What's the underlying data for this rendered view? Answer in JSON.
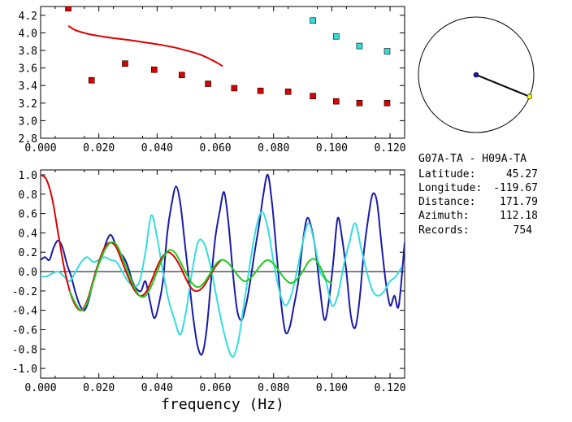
{
  "info": {
    "title": "G07A-TA - H09A-TA",
    "latitude_label": "Latitude:",
    "latitude": "45.27",
    "longitude_label": "Longitude:",
    "longitude": "-119.67",
    "distance_label": "Distance:",
    "distance": "171.79",
    "azimuth_label": "Azimuth:",
    "azimuth": "112.18",
    "records_label": "Records:",
    "records": "754"
  },
  "compass": {
    "azimuth_deg": 112.18,
    "needle_color": "#000000",
    "tip_color": "#ffff00"
  },
  "colors": {
    "red": "#dd0000",
    "cyan": "#33dddd",
    "blue": "#1a1aaa",
    "green": "#22cc22"
  },
  "chart_data": [
    {
      "type": "scatter",
      "xlim": [
        0.0,
        0.125
      ],
      "ylim": [
        2.8,
        4.3
      ],
      "xticks": [
        "0.000",
        "0.020",
        "0.040",
        "0.060",
        "0.080",
        "0.100",
        "0.120"
      ],
      "yticks": [
        "2.8",
        "3.0",
        "3.2",
        "3.4",
        "3.6",
        "3.8",
        "4.0",
        "4.2"
      ],
      "series": [
        {
          "marker": "square",
          "color": "#dd0000",
          "points": [
            [
              0.0095,
              4.28
            ],
            [
              0.0175,
              3.46
            ],
            [
              0.029,
              3.65
            ],
            [
              0.039,
              3.58
            ],
            [
              0.0485,
              3.52
            ],
            [
              0.0575,
              3.42
            ],
            [
              0.0665,
              3.37
            ],
            [
              0.0755,
              3.34
            ],
            [
              0.085,
              3.33
            ],
            [
              0.0935,
              3.28
            ],
            [
              0.1015,
              3.22
            ],
            [
              0.1095,
              3.2
            ],
            [
              0.119,
              3.2
            ]
          ]
        },
        {
          "marker": "square",
          "color": "#33dddd",
          "points": [
            [
              0.0935,
              4.14
            ],
            [
              0.1015,
              3.96
            ],
            [
              0.1095,
              3.85
            ],
            [
              0.119,
              3.79
            ]
          ]
        },
        {
          "marker": "line",
          "color": "#dd0000",
          "points": [
            [
              0.0095,
              4.08
            ],
            [
              0.012,
              4.03
            ],
            [
              0.016,
              3.99
            ],
            [
              0.02,
              3.965
            ],
            [
              0.025,
              3.94
            ],
            [
              0.03,
              3.92
            ],
            [
              0.035,
              3.895
            ],
            [
              0.04,
              3.87
            ],
            [
              0.045,
              3.84
            ],
            [
              0.05,
              3.8
            ],
            [
              0.055,
              3.75
            ],
            [
              0.06,
              3.67
            ],
            [
              0.0625,
              3.62
            ]
          ]
        }
      ]
    },
    {
      "type": "line",
      "xlabel": "frequency (Hz)",
      "xlim": [
        0.0,
        0.125
      ],
      "ylim": [
        -1.1,
        1.05
      ],
      "xticks": [
        "0.000",
        "0.020",
        "0.040",
        "0.060",
        "0.080",
        "0.100",
        "0.120"
      ],
      "yticks": [
        "-1.0",
        "-0.8",
        "-0.6",
        "-0.4",
        "-0.2",
        "0.0",
        "0.2",
        "0.4",
        "0.6",
        "0.8",
        "1.0"
      ],
      "series": [
        {
          "color": "#1a1aaa",
          "x": [
            0.0,
            0.0015,
            0.003,
            0.0045,
            0.006,
            0.0075,
            0.009,
            0.0105,
            0.012,
            0.0135,
            0.015,
            0.0165,
            0.018,
            0.0195,
            0.021,
            0.0225,
            0.024,
            0.0255,
            0.027,
            0.0285,
            0.03,
            0.0315,
            0.033,
            0.0345,
            0.036,
            0.0375,
            0.039,
            0.0405,
            0.042,
            0.0435,
            0.045,
            0.0465,
            0.048,
            0.0495,
            0.051,
            0.0525,
            0.054,
            0.0555,
            0.057,
            0.0585,
            0.06,
            0.0615,
            0.063,
            0.0645,
            0.066,
            0.0675,
            0.069,
            0.0705,
            0.072,
            0.0735,
            0.075,
            0.0765,
            0.078,
            0.0795,
            0.081,
            0.0825,
            0.084,
            0.0855,
            0.087,
            0.0885,
            0.09,
            0.0915,
            0.093,
            0.0945,
            0.096,
            0.0975,
            0.099,
            0.1005,
            0.102,
            0.1035,
            0.105,
            0.1065,
            0.108,
            0.1095,
            0.111,
            0.1125,
            0.114,
            0.1155,
            0.117,
            0.1185,
            0.12,
            0.1215,
            0.123,
            0.125
          ],
          "y": [
            0.12,
            0.15,
            0.12,
            0.25,
            0.32,
            0.25,
            0.08,
            -0.05,
            -0.22,
            -0.35,
            -0.4,
            -0.3,
            -0.1,
            0.05,
            0.15,
            0.3,
            0.38,
            0.3,
            0.2,
            0.15,
            0.05,
            -0.1,
            -0.18,
            -0.2,
            -0.1,
            -0.3,
            -0.48,
            -0.35,
            -0.1,
            0.4,
            0.7,
            0.88,
            0.7,
            0.3,
            -0.1,
            -0.5,
            -0.78,
            -0.85,
            -0.6,
            -0.1,
            0.35,
            0.62,
            0.82,
            0.5,
            0.0,
            -0.4,
            -0.5,
            -0.35,
            -0.1,
            0.2,
            0.48,
            0.8,
            1.0,
            0.7,
            0.2,
            -0.3,
            -0.62,
            -0.58,
            -0.35,
            -0.1,
            0.3,
            0.55,
            0.45,
            0.2,
            -0.2,
            -0.5,
            -0.3,
            0.1,
            0.55,
            0.35,
            0.0,
            -0.45,
            -0.58,
            -0.3,
            0.2,
            0.55,
            0.8,
            0.72,
            0.3,
            -0.1,
            -0.35,
            -0.25,
            -0.35,
            0.3
          ]
        },
        {
          "color": "#33dddd",
          "x": [
            0.0,
            0.002,
            0.004,
            0.006,
            0.008,
            0.01,
            0.012,
            0.014,
            0.016,
            0.018,
            0.02,
            0.022,
            0.024,
            0.026,
            0.028,
            0.03,
            0.032,
            0.034,
            0.036,
            0.038,
            0.04,
            0.042,
            0.044,
            0.046,
            0.048,
            0.05,
            0.052,
            0.054,
            0.056,
            0.058,
            0.06,
            0.062,
            0.064,
            0.066,
            0.068,
            0.07,
            0.072,
            0.074,
            0.076,
            0.078,
            0.08,
            0.082,
            0.084,
            0.086,
            0.088,
            0.09,
            0.092,
            0.094,
            0.096,
            0.098,
            0.1,
            0.102,
            0.104,
            0.106,
            0.108,
            0.11,
            0.112,
            0.114,
            0.116,
            0.118,
            0.12,
            0.122,
            0.124
          ],
          "y": [
            -0.05,
            -0.05,
            -0.02,
            0.0,
            -0.05,
            -0.1,
            0.0,
            0.1,
            0.15,
            0.1,
            0.12,
            0.15,
            0.12,
            0.1,
            0.0,
            -0.1,
            -0.15,
            -0.1,
            0.2,
            0.58,
            0.35,
            0.0,
            -0.3,
            -0.5,
            -0.65,
            -0.4,
            0.0,
            0.3,
            0.3,
            0.1,
            -0.2,
            -0.5,
            -0.75,
            -0.88,
            -0.7,
            -0.3,
            0.1,
            0.45,
            0.62,
            0.45,
            0.1,
            -0.2,
            -0.35,
            -0.25,
            0.0,
            0.3,
            0.5,
            0.3,
            0.0,
            -0.1,
            -0.35,
            -0.25,
            0.05,
            0.3,
            0.5,
            0.25,
            0.0,
            -0.2,
            -0.25,
            -0.2,
            -0.1,
            -0.05,
            0.05
          ]
        },
        {
          "color": "#dd0000",
          "x": [
            0.0,
            0.002,
            0.004,
            0.006,
            0.008,
            0.01,
            0.012,
            0.014,
            0.016,
            0.018,
            0.02,
            0.022,
            0.024,
            0.026,
            0.028,
            0.03,
            0.032,
            0.034,
            0.036,
            0.038,
            0.04,
            0.042,
            0.044,
            0.046,
            0.048,
            0.05,
            0.052,
            0.054,
            0.056,
            0.058,
            0.06,
            0.062
          ],
          "y": [
            1.0,
            0.95,
            0.75,
            0.4,
            0.05,
            -0.2,
            -0.35,
            -0.4,
            -0.3,
            -0.1,
            0.1,
            0.25,
            0.3,
            0.25,
            0.1,
            -0.05,
            -0.18,
            -0.25,
            -0.22,
            -0.1,
            0.05,
            0.16,
            0.2,
            0.15,
            0.05,
            -0.08,
            -0.18,
            -0.2,
            -0.15,
            -0.05,
            0.05,
            0.12
          ]
        },
        {
          "color": "#22cc22",
          "x": [
            0.01,
            0.012,
            0.014,
            0.016,
            0.018,
            0.02,
            0.022,
            0.024,
            0.026,
            0.028,
            0.03,
            0.032,
            0.034,
            0.036,
            0.038,
            0.04,
            0.042,
            0.044,
            0.046,
            0.048,
            0.05,
            0.052,
            0.054,
            0.056,
            0.058,
            0.06,
            0.062,
            0.064,
            0.066,
            0.068,
            0.07,
            0.072,
            0.074,
            0.076,
            0.078,
            0.08,
            0.082,
            0.084,
            0.086,
            0.088,
            0.09,
            0.092,
            0.094,
            0.096,
            0.098,
            0.1
          ],
          "y": [
            -0.2,
            -0.33,
            -0.4,
            -0.32,
            -0.12,
            0.08,
            0.22,
            0.3,
            0.28,
            0.15,
            0.0,
            -0.15,
            -0.25,
            -0.25,
            -0.15,
            0.0,
            0.14,
            0.22,
            0.2,
            0.1,
            -0.02,
            -0.12,
            -0.16,
            -0.12,
            -0.03,
            0.07,
            0.12,
            0.1,
            0.03,
            -0.05,
            -0.1,
            -0.07,
            0.0,
            0.08,
            0.12,
            0.08,
            0.0,
            -0.08,
            -0.12,
            -0.08,
            0.0,
            0.1,
            0.13,
            0.05,
            -0.08,
            -0.12
          ]
        }
      ]
    }
  ]
}
